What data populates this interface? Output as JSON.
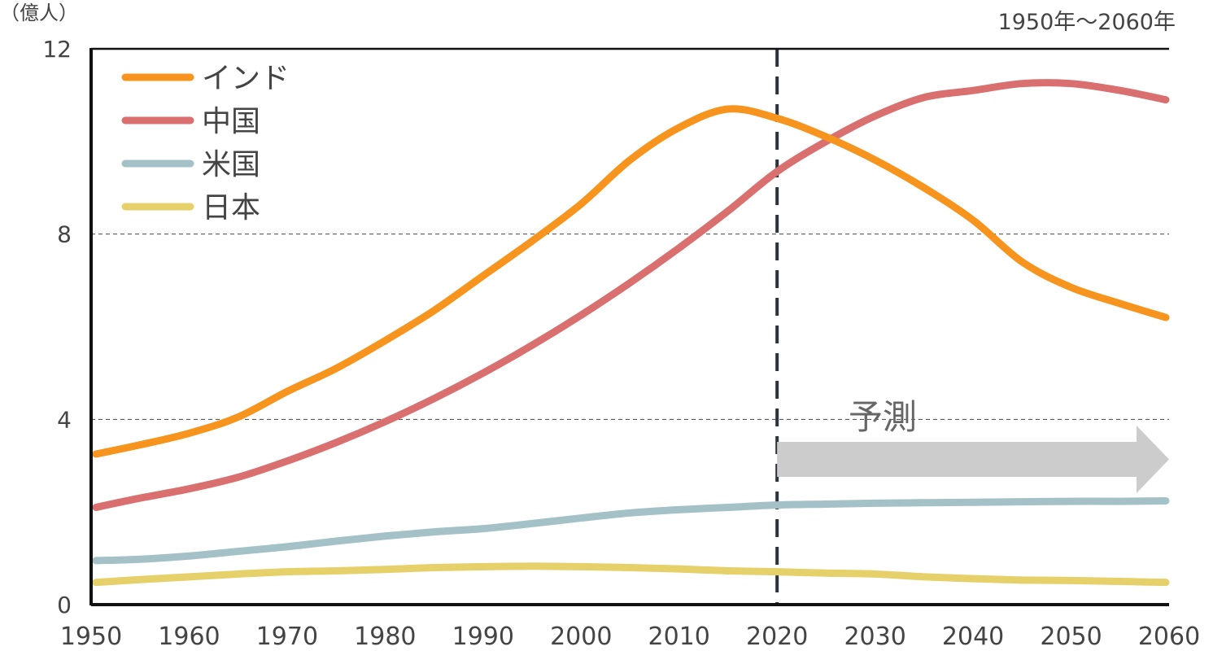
{
  "chart_data": {
    "type": "line",
    "ylabel": "（億人）",
    "subtitle": "1950年～2060年",
    "ylim": [
      0,
      12
    ],
    "yticks": [
      0,
      4,
      8,
      12
    ],
    "xlim": [
      1950,
      2060
    ],
    "xticks": [
      1950,
      1960,
      1970,
      1980,
      1990,
      2000,
      2010,
      2020,
      2030,
      2040,
      2050,
      2060
    ],
    "grid": "horizontal dashed at 4 and 8",
    "legend_position": "top-left",
    "forecast_start": 2020,
    "forecast_label": "予測",
    "x": [
      1950,
      1955,
      1960,
      1965,
      1970,
      1975,
      1980,
      1985,
      1990,
      1995,
      2000,
      2005,
      2010,
      2015,
      2020,
      2025,
      2030,
      2035,
      2040,
      2045,
      2050,
      2055,
      2060
    ],
    "series": [
      {
        "name": "インド",
        "color": "#f7941d",
        "values": [
          3.25,
          3.45,
          3.7,
          4.05,
          4.6,
          5.1,
          5.7,
          6.35,
          7.1,
          7.85,
          8.65,
          9.6,
          10.3,
          10.7,
          10.5,
          10.1,
          9.6,
          9.0,
          8.3,
          7.4,
          6.85,
          6.5,
          6.2
        ]
      },
      {
        "name": "中国",
        "color": "#d9706f",
        "values": [
          2.1,
          2.3,
          2.5,
          2.75,
          3.1,
          3.5,
          3.95,
          4.45,
          5.0,
          5.6,
          6.25,
          6.95,
          7.7,
          8.5,
          9.35,
          10.0,
          10.55,
          10.95,
          11.1,
          11.25,
          11.25,
          11.1,
          10.9
        ]
      },
      {
        "name": "米国",
        "color": "#a3c1c6",
        "values": [
          0.95,
          0.98,
          1.05,
          1.15,
          1.25,
          1.37,
          1.48,
          1.57,
          1.64,
          1.75,
          1.87,
          1.98,
          2.05,
          2.1,
          2.15,
          2.17,
          2.19,
          2.2,
          2.21,
          2.22,
          2.23,
          2.23,
          2.24
        ]
      },
      {
        "name": "日本",
        "color": "#e5d06a",
        "values": [
          0.48,
          0.54,
          0.6,
          0.66,
          0.71,
          0.73,
          0.76,
          0.8,
          0.82,
          0.83,
          0.82,
          0.8,
          0.77,
          0.73,
          0.71,
          0.68,
          0.66,
          0.6,
          0.56,
          0.53,
          0.52,
          0.5,
          0.48
        ]
      }
    ]
  }
}
